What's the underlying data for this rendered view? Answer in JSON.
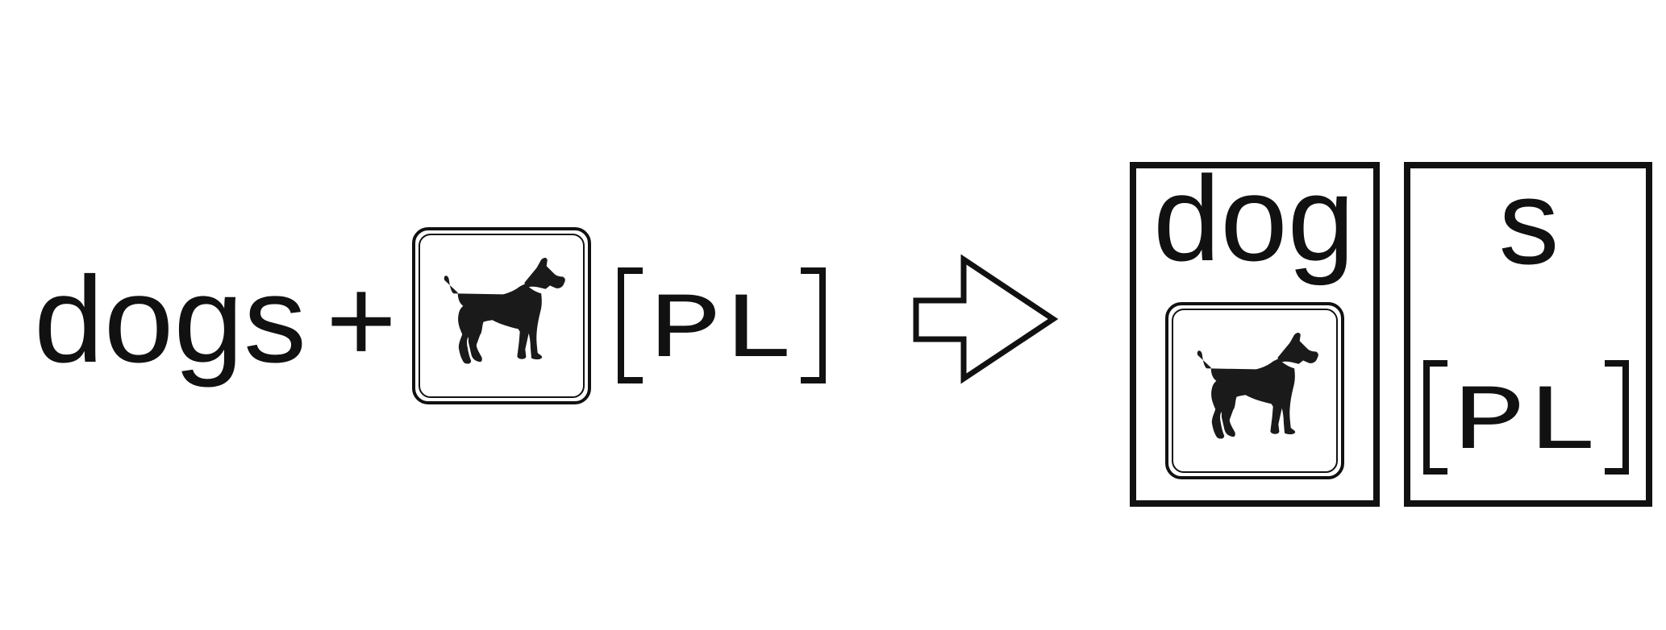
{
  "equation": {
    "word": "dogs",
    "operator": "+",
    "image_icon": "dog-silhouette-icon",
    "plural_tag": "PL",
    "result_icon": "right-arrow-icon"
  },
  "result": {
    "stem": {
      "text": "dog",
      "icon": "dog-silhouette-icon"
    },
    "suffix": {
      "text": "s",
      "tag": "PL"
    }
  },
  "colors": {
    "ink": "#111111",
    "background": "#ffffff"
  }
}
